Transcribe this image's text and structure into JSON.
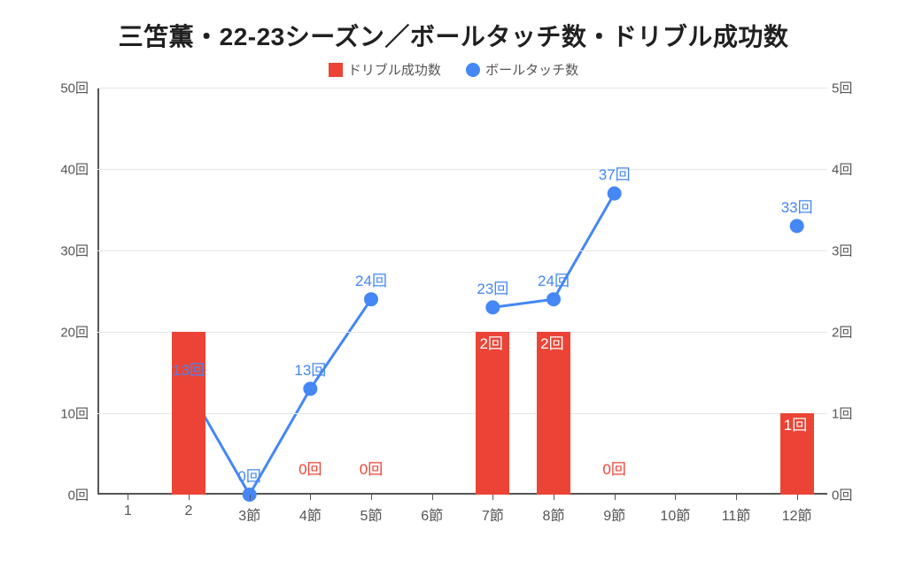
{
  "chart": {
    "type": "combo-bar-line",
    "title": "三笘薫・22-23シーズン／ボールタッチ数・ドリブル成功数",
    "title_fontsize": 28,
    "background_color": "#ffffff",
    "legend": {
      "bar": {
        "label": "ドリブル成功数",
        "color": "#eb4436"
      },
      "line": {
        "label": "ボールタッチ数",
        "color": "#4487f5"
      }
    },
    "axis_text_color": "#555555",
    "axis_line_color": "#555555",
    "gridline_color": "#e6e6e6",
    "x": {
      "categories": [
        "1",
        "2",
        "3節",
        "4節",
        "5節",
        "6節",
        "7節",
        "8節",
        "9節",
        "10節",
        "11節",
        "12節"
      ]
    },
    "left_axis": {
      "label_suffix": "回",
      "min": 0,
      "max": 50,
      "step": 10
    },
    "right_axis": {
      "label_suffix": "回",
      "min": 0,
      "max": 5,
      "step": 1
    },
    "bars": {
      "series_name": "ドリブル成功数",
      "color": "#eb4436",
      "label_color": "#eb4436",
      "axis": "right",
      "values": [
        null,
        2,
        null,
        0,
        0,
        null,
        2,
        2,
        0,
        null,
        null,
        1
      ],
      "show_label": [
        false,
        false,
        false,
        true,
        true,
        false,
        true,
        true,
        true,
        false,
        false,
        true
      ],
      "bar_width_frac": 0.55
    },
    "line": {
      "series_name": "ボールタッチ数",
      "color": "#4487f5",
      "label_color": "#4487f5",
      "axis": "left",
      "values": [
        null,
        13,
        0,
        13,
        24,
        null,
        23,
        24,
        37,
        null,
        null,
        33
      ],
      "marker_radius": 8,
      "line_width": 3
    },
    "value_label_fontsize": 17,
    "value_label_suffix": "回"
  }
}
